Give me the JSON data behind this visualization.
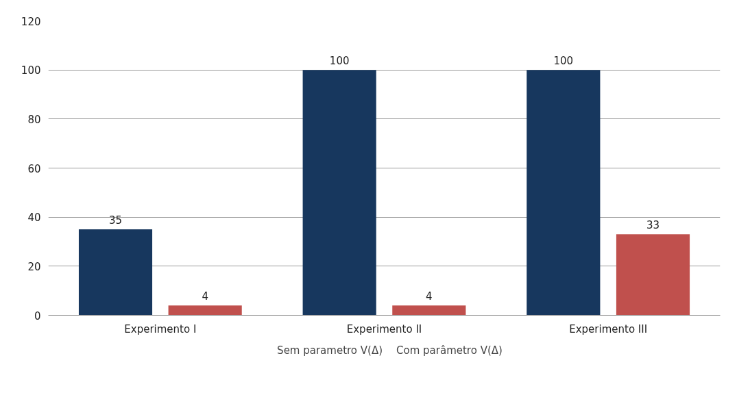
{
  "chart_data": {
    "type": "bar",
    "categories": [
      "Experimento I",
      "Experimento II",
      "Experimento III"
    ],
    "series": [
      {
        "name": "Sem parametro V(Δ)",
        "color": "#17375e",
        "values": [
          35,
          100,
          100
        ]
      },
      {
        "name": "Com parâmetro V(Δ)",
        "color": "#c0504d",
        "values": [
          4,
          4,
          33
        ]
      }
    ],
    "ylim": [
      0,
      120
    ],
    "yticks": [
      0,
      20,
      40,
      60,
      80,
      100,
      120
    ],
    "grid": "y",
    "legend": "bottom",
    "data_labels": true
  }
}
